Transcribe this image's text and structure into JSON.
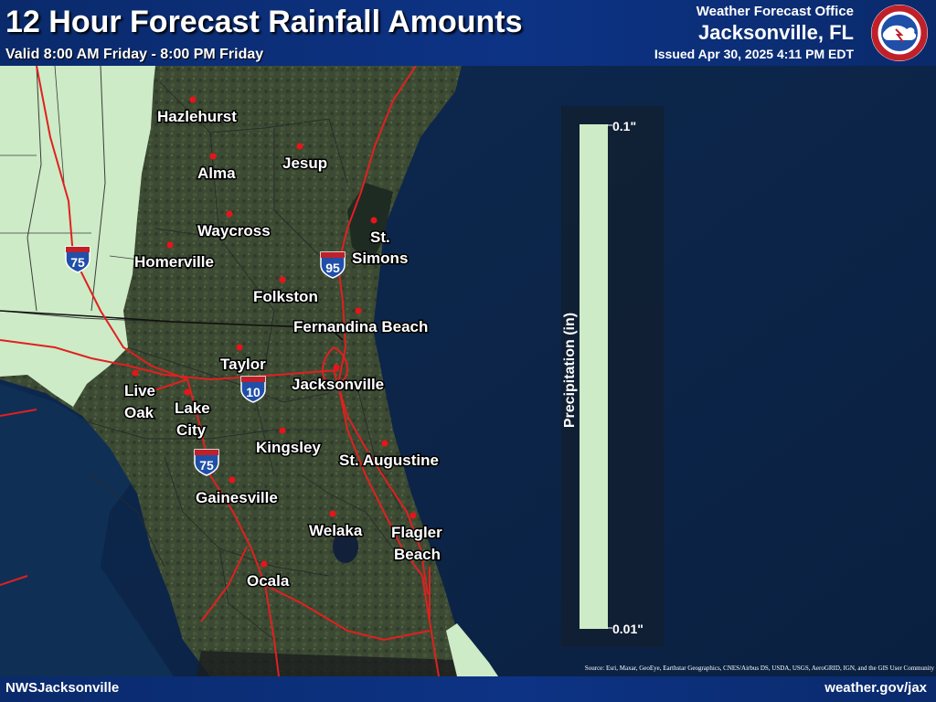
{
  "header": {
    "title": "12 Hour Forecast Rainfall Amounts",
    "valid": "Valid 8:00 AM Friday - 8:00 PM Friday",
    "office": "Weather Forecast Office",
    "city": "Jacksonville, FL",
    "issued": "Issued Apr 30, 2025 4:11 PM EDT",
    "logo_ring_text": "NATIONAL WEATHER SERVICE"
  },
  "footer": {
    "left": "NWSJacksonville",
    "right": "weather.gov/jax",
    "source": "Source: Esri, Maxar, GeoEye, Earthstar Geographics, CNES/Airbus DS, USDA, USGS, AeroGRID, IGN, and the GIS User Community"
  },
  "legend": {
    "title": "Precipitation (in)",
    "top_label": "0.1\"",
    "bottom_label": "0.01\"",
    "color": "#cdebc6"
  },
  "colors": {
    "rain_fill": "#cdebc6",
    "city_dot": "#e8141a",
    "highway": "#e02020",
    "header_bg": "#0d3385"
  },
  "cities": {
    "hazlehurst": "Hazlehurst",
    "alma": "Alma",
    "jesup": "Jesup",
    "waycross": "Waycross",
    "st_simons_1": "St.",
    "st_simons_2": "Simons",
    "homerville": "Homerville",
    "folkston": "Folkston",
    "fernandina": "Fernandina Beach",
    "taylor": "Taylor",
    "jacksonville": "Jacksonville",
    "live_oak_1": "Live",
    "live_oak_2": "Oak",
    "lake_city_1": "Lake",
    "lake_city_2": "City",
    "kingsley": "Kingsley",
    "st_augustine": "St. Augustine",
    "gainesville": "Gainesville",
    "welaka": "Welaka",
    "flagler_1": "Flagler",
    "flagler_2": "Beach",
    "ocala": "Ocala"
  },
  "interstates": {
    "i75_north": "75",
    "i95": "95",
    "i10": "10",
    "i75_south": "75"
  }
}
